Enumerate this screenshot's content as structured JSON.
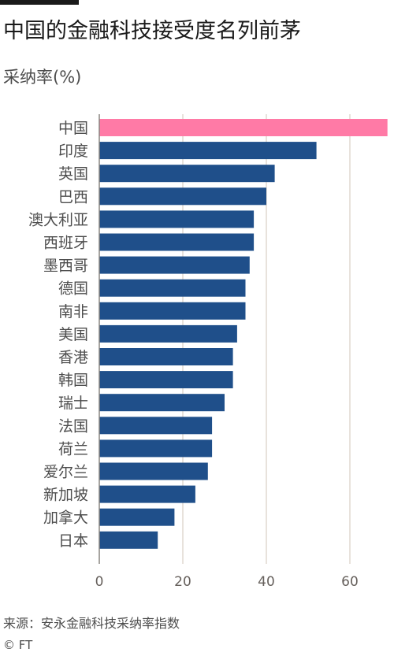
{
  "header": {
    "title": "中国的金融科技接受度名列前茅",
    "subtitle": "采纳率(%)"
  },
  "footer": {
    "source": "来源：安永金融科技采纳率指数",
    "copyright": "© FT"
  },
  "colors": {
    "highlight": "#ff7aa6",
    "bar": "#1f4f8a",
    "grid": "#e0d8d0",
    "axis": "#8a8580"
  },
  "chart_data": {
    "type": "bar",
    "orientation": "horizontal",
    "title": "中国的金融科技接受度名列前茅",
    "subtitle": "采纳率(%)",
    "xlabel": "",
    "ylabel": "",
    "xlim": [
      0,
      69
    ],
    "xticks": [
      0,
      20,
      40,
      60
    ],
    "grid": true,
    "highlight_category": "中国",
    "categories": [
      "中国",
      "印度",
      "英国",
      "巴西",
      "澳大利亚",
      "西班牙",
      "墨西哥",
      "德国",
      "南非",
      "美国",
      "香港",
      "韩国",
      "瑞士",
      "法国",
      "荷兰",
      "爱尔兰",
      "新加坡",
      "加拿大",
      "日本"
    ],
    "values": [
      69,
      52,
      42,
      40,
      37,
      37,
      36,
      35,
      35,
      33,
      32,
      32,
      30,
      27,
      27,
      26,
      23,
      18,
      14
    ]
  }
}
